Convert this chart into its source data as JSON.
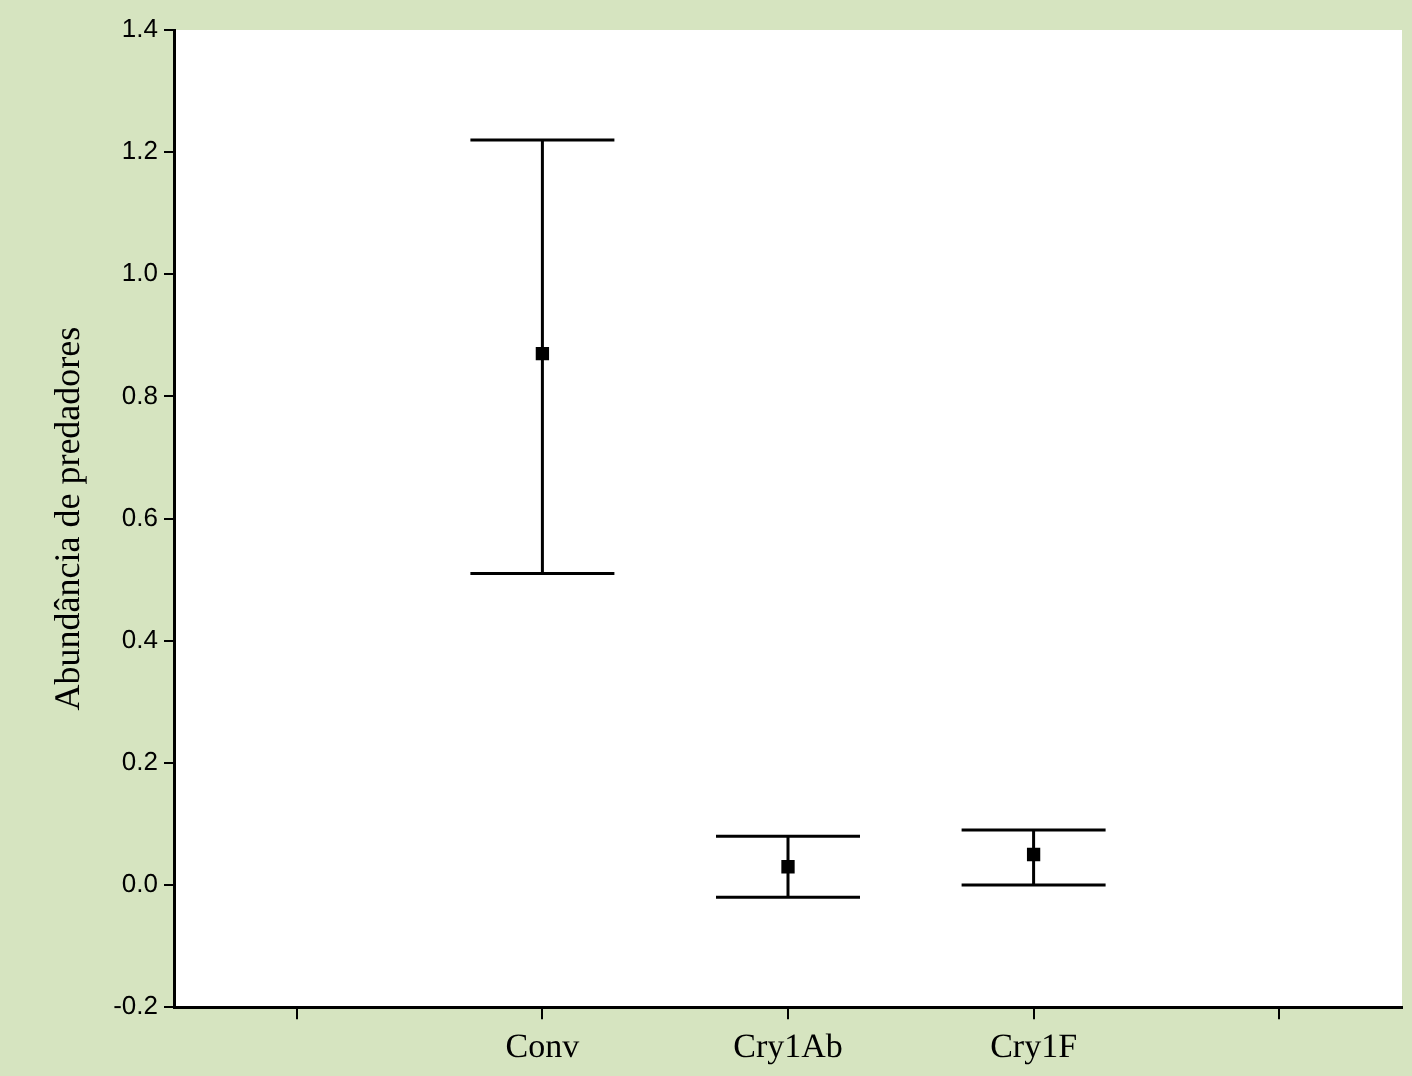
{
  "chart_data": {
    "type": "scatter",
    "ylabel": "Abundância de predadores",
    "categories": [
      null,
      "Conv",
      "Cry1Ab",
      "Cry1F",
      null
    ],
    "series": [
      {
        "color": "#000000",
        "values": [
          null,
          0.87,
          0.03,
          0.05,
          null
        ],
        "errors": [
          null,
          [
            0.51,
            1.22
          ],
          [
            -0.02,
            0.08
          ],
          [
            0.0,
            0.09
          ],
          null
        ]
      }
    ],
    "ylim": [
      -0.2,
      1.4
    ],
    "yticks": [
      -0.2,
      {
        "value": 0,
        "label": "0.0"
      },
      0.2,
      0.4,
      0.6,
      0.8,
      {
        "value": 1,
        "label": "1.0"
      },
      1.2,
      1.4
    ],
    "marker": "square",
    "grid": false,
    "legend": false
  }
}
